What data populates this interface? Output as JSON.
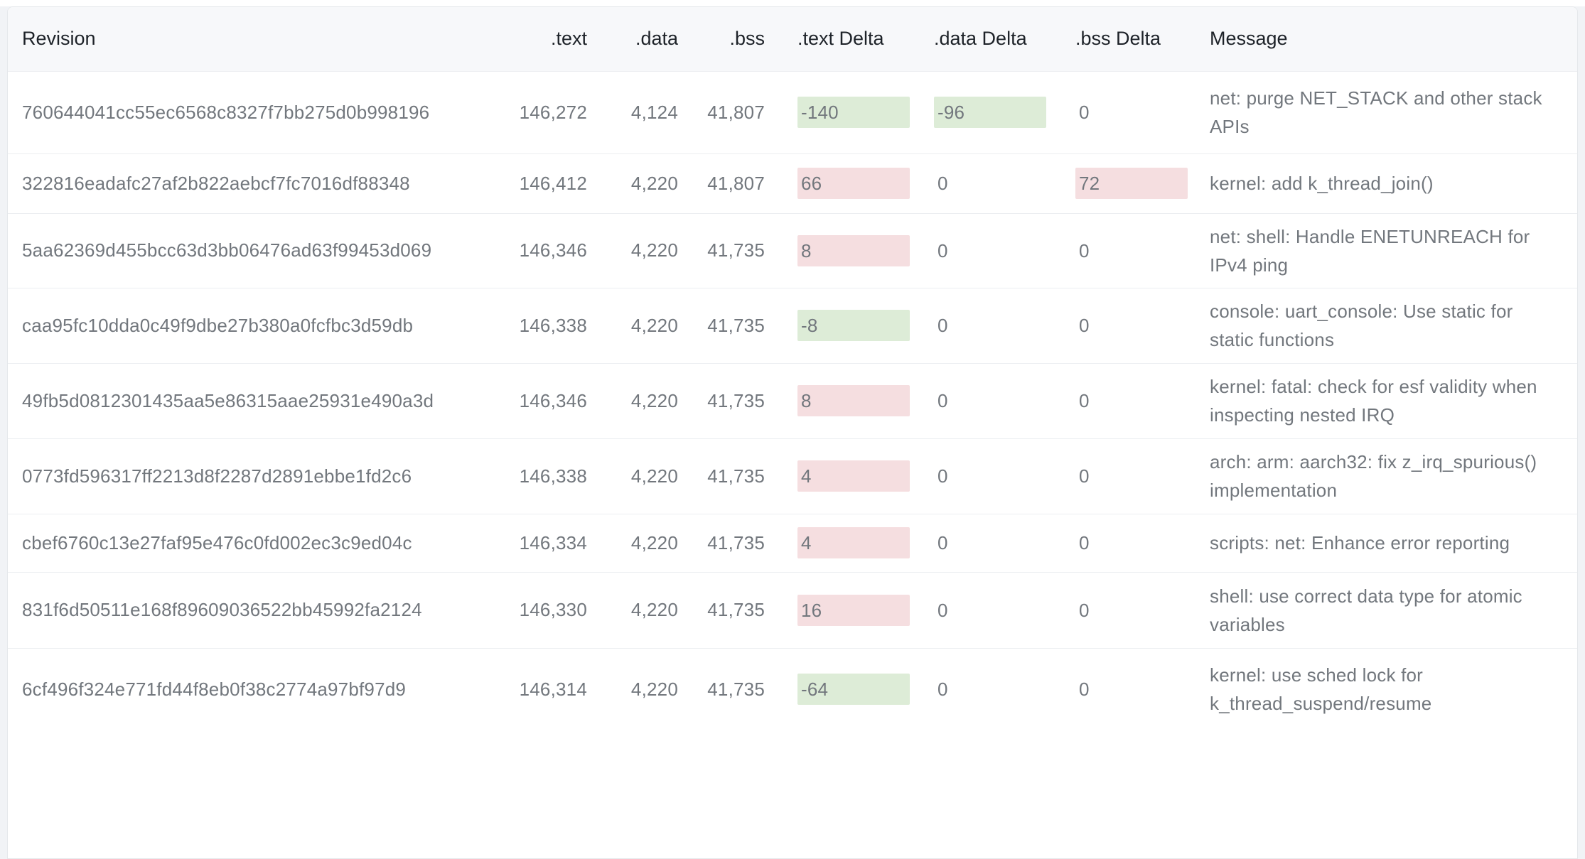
{
  "table": {
    "columns": {
      "revision": "Revision",
      "text": ".text",
      "data": ".data",
      "bss": ".bss",
      "text_delta": ".text Delta",
      "data_delta": ".data Delta",
      "bss_delta": ".bss Delta",
      "message": "Message"
    },
    "rows": [
      {
        "revision": "760644041cc55ec6568c8327f7bb275d0b998196",
        "text": "146,272",
        "data": "4,124",
        "bss": "41,807",
        "text_delta": "-140",
        "data_delta": "-96",
        "bss_delta": "0",
        "message": "net: purge NET_STACK and other stack APIs"
      },
      {
        "revision": "322816eadafc27af2b822aebcf7fc7016df88348",
        "text": "146,412",
        "data": "4,220",
        "bss": "41,807",
        "text_delta": "66",
        "data_delta": "0",
        "bss_delta": "72",
        "message": "kernel: add k_thread_join()"
      },
      {
        "revision": "5aa62369d455bcc63d3bb06476ad63f99453d069",
        "text": "146,346",
        "data": "4,220",
        "bss": "41,735",
        "text_delta": "8",
        "data_delta": "0",
        "bss_delta": "0",
        "message": "net: shell: Handle ENETUNREACH for IPv4 ping"
      },
      {
        "revision": "caa95fc10dda0c49f9dbe27b380a0fcfbc3d59db",
        "text": "146,338",
        "data": "4,220",
        "bss": "41,735",
        "text_delta": "-8",
        "data_delta": "0",
        "bss_delta": "0",
        "message": "console: uart_console: Use static for static functions"
      },
      {
        "revision": "49fb5d0812301435aa5e86315aae25931e490a3d",
        "text": "146,346",
        "data": "4,220",
        "bss": "41,735",
        "text_delta": "8",
        "data_delta": "0",
        "bss_delta": "0",
        "message": "kernel: fatal: check for esf validity when inspecting nested IRQ"
      },
      {
        "revision": "0773fd596317ff2213d8f2287d2891ebbe1fd2c6",
        "text": "146,338",
        "data": "4,220",
        "bss": "41,735",
        "text_delta": "4",
        "data_delta": "0",
        "bss_delta": "0",
        "message": "arch: arm: aarch32: fix z_irq_spurious() implementation"
      },
      {
        "revision": "cbef6760c13e27faf95e476c0fd002ec3c9ed04c",
        "text": "146,334",
        "data": "4,220",
        "bss": "41,735",
        "text_delta": "4",
        "data_delta": "0",
        "bss_delta": "0",
        "message": "scripts: net: Enhance error reporting"
      },
      {
        "revision": "831f6d50511e168f89609036522bb45992fa2124",
        "text": "146,330",
        "data": "4,220",
        "bss": "41,735",
        "text_delta": "16",
        "data_delta": "0",
        "bss_delta": "0",
        "message": "shell: use correct data type for atomic variables"
      },
      {
        "revision": "6cf496f324e771fd44f8eb0f38c2774a97bf97d9",
        "text": "146,314",
        "data": "4,220",
        "bss": "41,735",
        "text_delta": "-64",
        "data_delta": "0",
        "bss_delta": "0",
        "message": "kernel: use sched lock for k_thread_suspend/resume"
      }
    ]
  },
  "colors": {
    "delta_increase_bg": "#f5dee0",
    "delta_decrease_bg": "#ddecd7",
    "header_bg": "#f7f8fa",
    "body_text": "#72777d",
    "header_text": "#1d2228"
  }
}
